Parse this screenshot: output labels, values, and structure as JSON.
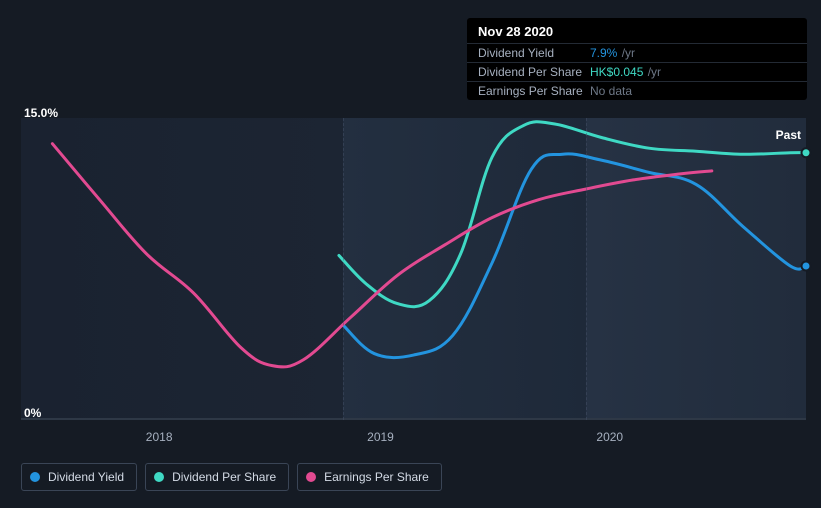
{
  "chart": {
    "type": "line",
    "background_gradient": [
      "#1a2230",
      "#1c2533",
      "#232f40",
      "#1e2939",
      "#263244",
      "#212c3c"
    ],
    "axis_color": "#2e3846",
    "vguide_color": "#48536a",
    "label_color": "#a6b0bf",
    "text_color": "#ffffff",
    "ylim": [
      0,
      15
    ],
    "y_ticks": [
      0,
      15
    ],
    "y_tick_labels": [
      "0%",
      "15.0%"
    ],
    "x_ticks": [
      "2018",
      "2019",
      "2020"
    ],
    "x_tick_positions_pct": [
      17.6,
      45.8,
      75.0
    ],
    "vguide_positions_pct": [
      41,
      72
    ],
    "past_label": "Past",
    "line_width": 3,
    "series": [
      {
        "name": "Dividend Yield",
        "color": "#2394df",
        "endcap": true,
        "points": [
          [
            41,
            31.5
          ],
          [
            45,
            22
          ],
          [
            50,
            21.5
          ],
          [
            55,
            28
          ],
          [
            60,
            52
          ],
          [
            65,
            83
          ],
          [
            69,
            88
          ],
          [
            74,
            86
          ],
          [
            80,
            82
          ],
          [
            86,
            78
          ],
          [
            92,
            64
          ],
          [
            98,
            51
          ],
          [
            100,
            51
          ]
        ]
      },
      {
        "name": "Dividend Per Share",
        "color": "#3fd9c4",
        "endcap": true,
        "points": [
          [
            40.5,
            54.5
          ],
          [
            44,
            45
          ],
          [
            48,
            38.5
          ],
          [
            52,
            39.5
          ],
          [
            56,
            55
          ],
          [
            60,
            87
          ],
          [
            64,
            97.5
          ],
          [
            68,
            98
          ],
          [
            74,
            93.5
          ],
          [
            80,
            90
          ],
          [
            86,
            89
          ],
          [
            92,
            88
          ],
          [
            98,
            88.5
          ],
          [
            100,
            88.5
          ]
        ]
      },
      {
        "name": "Earnings Per Share",
        "color": "#e24a91",
        "endcap": false,
        "points": [
          [
            4,
            91.5
          ],
          [
            10,
            73
          ],
          [
            16,
            55
          ],
          [
            22,
            42
          ],
          [
            28,
            24
          ],
          [
            32,
            18
          ],
          [
            36,
            20
          ],
          [
            42,
            34
          ],
          [
            48,
            48
          ],
          [
            54,
            58
          ],
          [
            60,
            67
          ],
          [
            66,
            73
          ],
          [
            72,
            76.5
          ],
          [
            78,
            79.5
          ],
          [
            84,
            81.5
          ],
          [
            88,
            82.5
          ]
        ]
      }
    ]
  },
  "tooltip": {
    "date": "Nov 28 2020",
    "rows": [
      {
        "label": "Dividend Yield",
        "value": "7.9%",
        "unit": "/yr",
        "color": "#2394df"
      },
      {
        "label": "Dividend Per Share",
        "value": "HK$0.045",
        "unit": "/yr",
        "color": "#3fd9c4"
      },
      {
        "label": "Earnings Per Share",
        "value": "No data",
        "unit": "",
        "color": "#6e7887"
      }
    ]
  },
  "legend": {
    "items": [
      {
        "label": "Dividend Yield",
        "color": "#2394df"
      },
      {
        "label": "Dividend Per Share",
        "color": "#3fd9c4"
      },
      {
        "label": "Earnings Per Share",
        "color": "#e24a91"
      }
    ]
  }
}
